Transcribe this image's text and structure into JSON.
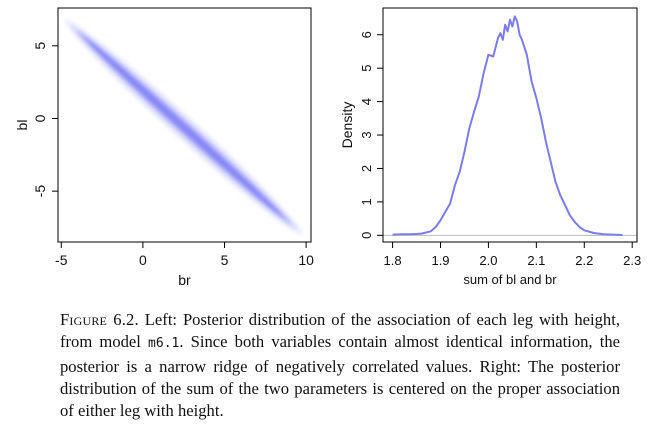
{
  "chart_data": [
    {
      "type": "scatter",
      "xlabel": "br",
      "ylabel": "bl",
      "xlim": [
        -5.2,
        10.3
      ],
      "ylim": [
        -8.5,
        7.6
      ],
      "xticks": [
        "-5",
        "0",
        "5",
        "10"
      ],
      "yticks": [
        "-5",
        "0",
        "5"
      ],
      "color": "#6f6ff5",
      "ridge": {
        "x": [
          -4.8,
          9.8
        ],
        "y": [
          6.8,
          -8.0
        ]
      },
      "grid": false
    },
    {
      "type": "line",
      "xlabel": "sum of bl and br",
      "ylabel": "Density",
      "xlim": [
        1.78,
        2.31
      ],
      "ylim": [
        -0.2,
        6.8
      ],
      "xticks": [
        "1.8",
        "1.9",
        "2.0",
        "2.1",
        "2.2",
        "2.3"
      ],
      "yticks": [
        "0",
        "1",
        "2",
        "3",
        "4",
        "5",
        "6"
      ],
      "color": "#7b7bf0",
      "baseline_color": "#bbbbbb",
      "grid": false,
      "series": [
        {
          "x": [
            1.8,
            1.82,
            1.84,
            1.86,
            1.88,
            1.89,
            1.9,
            1.91,
            1.92,
            1.93,
            1.94,
            1.95,
            1.96,
            1.97,
            1.98,
            1.99,
            2.0,
            2.01,
            2.02,
            2.025,
            2.03,
            2.035,
            2.04,
            2.045,
            2.05,
            2.055,
            2.06,
            2.065,
            2.07,
            2.08,
            2.09,
            2.1,
            2.11,
            2.12,
            2.13,
            2.14,
            2.15,
            2.16,
            2.17,
            2.18,
            2.19,
            2.2,
            2.22,
            2.24,
            2.26,
            2.28
          ],
          "y": [
            0.02,
            0.03,
            0.03,
            0.05,
            0.12,
            0.25,
            0.45,
            0.7,
            0.95,
            1.5,
            1.9,
            2.5,
            3.2,
            3.7,
            4.15,
            4.85,
            5.4,
            5.35,
            5.9,
            6.05,
            5.85,
            6.3,
            6.1,
            6.45,
            6.25,
            6.55,
            6.4,
            6.0,
            5.85,
            5.4,
            4.6,
            4.1,
            3.5,
            2.8,
            2.2,
            1.6,
            1.2,
            0.9,
            0.6,
            0.4,
            0.25,
            0.15,
            0.07,
            0.03,
            0.02,
            0.01
          ]
        }
      ]
    }
  ],
  "caption": {
    "label": "Figure 6.2.",
    "text_before_code": "Left: Posterior distribution of the association of each leg with height, from model ",
    "code": "m6.1",
    "text_after_code": ". Since both variables contain almost identical information, the posterior is a narrow ridge of negatively correlated values. Right: The posterior distribution of the sum of the two parameters is centered on the proper association of either leg with height."
  }
}
